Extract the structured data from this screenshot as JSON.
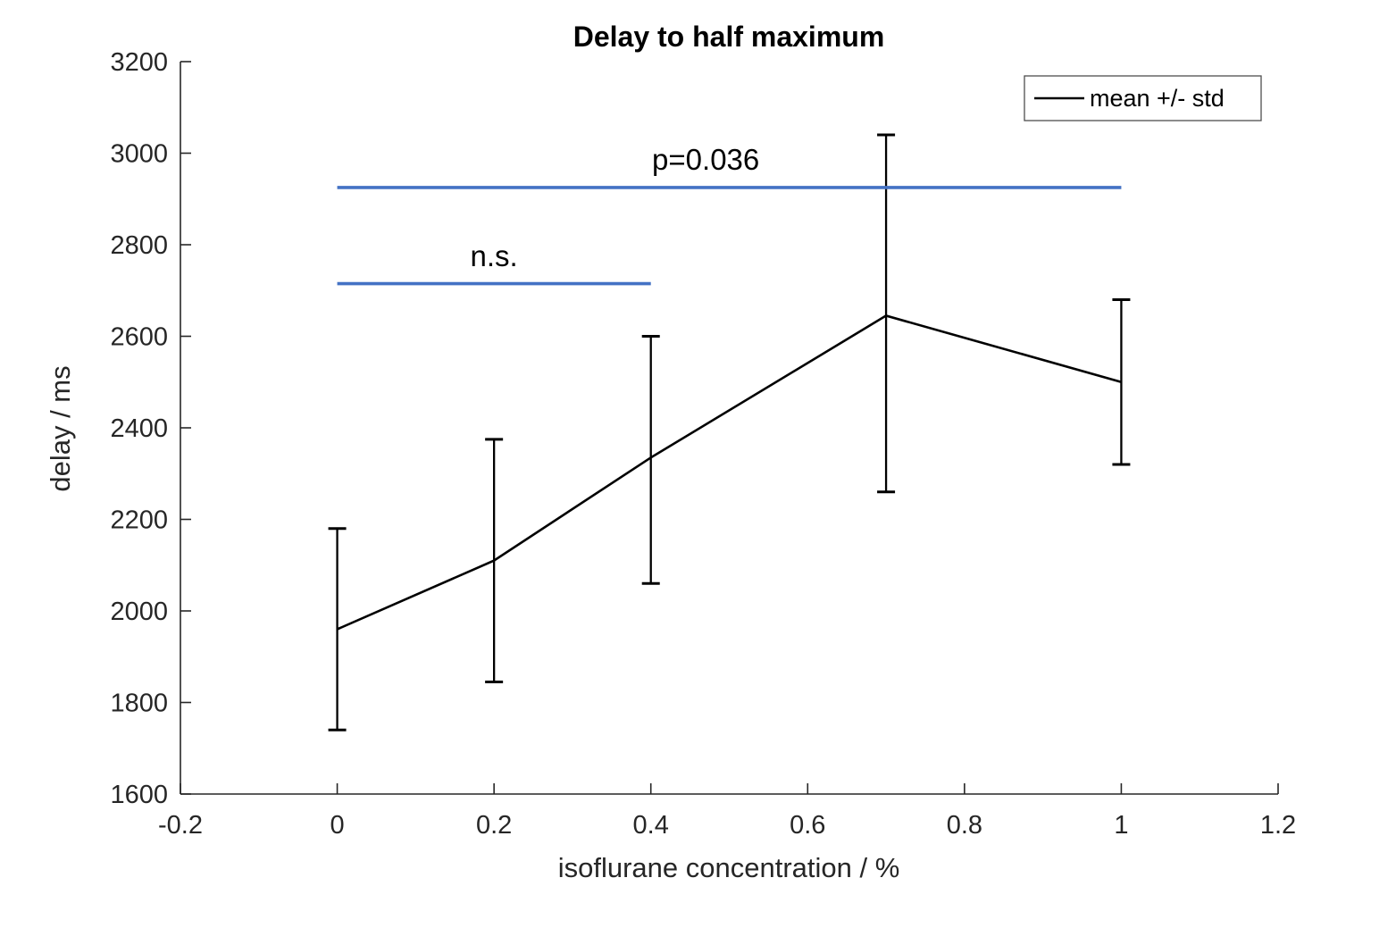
{
  "chart_data": {
    "type": "line",
    "title": "Delay to half maximum",
    "xlabel": "isoflurane concentration / %",
    "ylabel": "delay / ms",
    "xlim": [
      -0.2,
      1.2
    ],
    "ylim": [
      1600,
      3200
    ],
    "grid": false,
    "box": false,
    "xticks": {
      "values": [
        -0.2,
        0,
        0.2,
        0.4,
        0.6,
        0.8,
        1,
        1.2
      ],
      "labels": [
        "-0.2",
        "0",
        "0.2",
        "0.4",
        "0.6",
        "0.8",
        "1",
        "1.2"
      ]
    },
    "yticks": {
      "values": [
        1600,
        1800,
        2000,
        2200,
        2400,
        2600,
        2800,
        3000,
        3200
      ],
      "labels": [
        "1600",
        "1800",
        "2000",
        "2200",
        "2400",
        "2600",
        "2800",
        "3000",
        "3200"
      ]
    },
    "legend": {
      "position": "top-right",
      "entries": [
        {
          "label": "mean +/- std",
          "marker": "line",
          "color": "#000000"
        }
      ]
    },
    "series": [
      {
        "name": "mean +/- std",
        "x": [
          0,
          0.2,
          0.4,
          0.7,
          1
        ],
        "mean": [
          1960,
          2110,
          2335,
          2645,
          2500
        ],
        "upper": [
          2180,
          2375,
          2600,
          3040,
          2680
        ],
        "lower": [
          1740,
          1845,
          2060,
          2260,
          2320
        ],
        "color": "#000000"
      }
    ],
    "annotations": [
      {
        "label": "p=0.036",
        "x_start": 0,
        "x_end": 1,
        "y": 2925,
        "label_x": 0.47,
        "label_y": 2985,
        "color": "#4472C4"
      },
      {
        "label": "n.s.",
        "x_start": 0,
        "x_end": 0.4,
        "y": 2715,
        "label_x": 0.2,
        "label_y": 2775,
        "color": "#4472C4"
      }
    ]
  },
  "colors": {
    "background": "#ffffff",
    "axis": "#262626",
    "data_line": "#000000",
    "annotation_blue": "#4472C4"
  }
}
